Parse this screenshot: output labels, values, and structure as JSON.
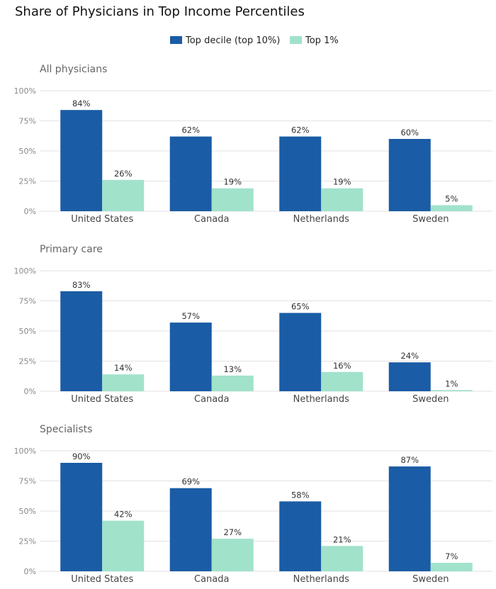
{
  "chart_data": [
    {
      "type": "bar",
      "title": "Share of Physicians in Top Income Percentiles",
      "subtitle": "All physicians",
      "categories": [
        "United States",
        "Canada",
        "Netherlands",
        "Sweden"
      ],
      "series": [
        {
          "name": "Top decile (top 10%)",
          "values": [
            84,
            62,
            62,
            60
          ]
        },
        {
          "name": "Top 1%",
          "values": [
            26,
            19,
            19,
            5
          ]
        }
      ],
      "yticks": [
        "0%",
        "25%",
        "50%",
        "75%",
        "100%"
      ],
      "ylim": [
        0,
        100
      ],
      "grid": true,
      "legend": "top-center"
    },
    {
      "type": "bar",
      "subtitle": "Primary care",
      "categories": [
        "United States",
        "Canada",
        "Netherlands",
        "Sweden"
      ],
      "series": [
        {
          "name": "Top decile (top 10%)",
          "values": [
            83,
            57,
            65,
            24
          ]
        },
        {
          "name": "Top 1%",
          "values": [
            14,
            13,
            16,
            1
          ]
        }
      ],
      "yticks": [
        "0%",
        "25%",
        "50%",
        "75%",
        "100%"
      ],
      "ylim": [
        0,
        100
      ],
      "grid": true
    },
    {
      "type": "bar",
      "subtitle": "Specialists",
      "categories": [
        "United States",
        "Canada",
        "Netherlands",
        "Sweden"
      ],
      "series": [
        {
          "name": "Top decile (top 10%)",
          "values": [
            90,
            69,
            58,
            87
          ]
        },
        {
          "name": "Top 1%",
          "values": [
            42,
            27,
            21,
            7
          ]
        }
      ],
      "yticks": [
        "0%",
        "25%",
        "50%",
        "75%",
        "100%"
      ],
      "ylim": [
        0,
        100
      ],
      "grid": true
    }
  ],
  "title": "Share of Physicians in Top Income Percentiles",
  "legend": [
    {
      "label": "Top decile (top 10%)",
      "color": "#1a5ca5"
    },
    {
      "label": "Top 1%",
      "color": "#a1e2cb"
    }
  ]
}
